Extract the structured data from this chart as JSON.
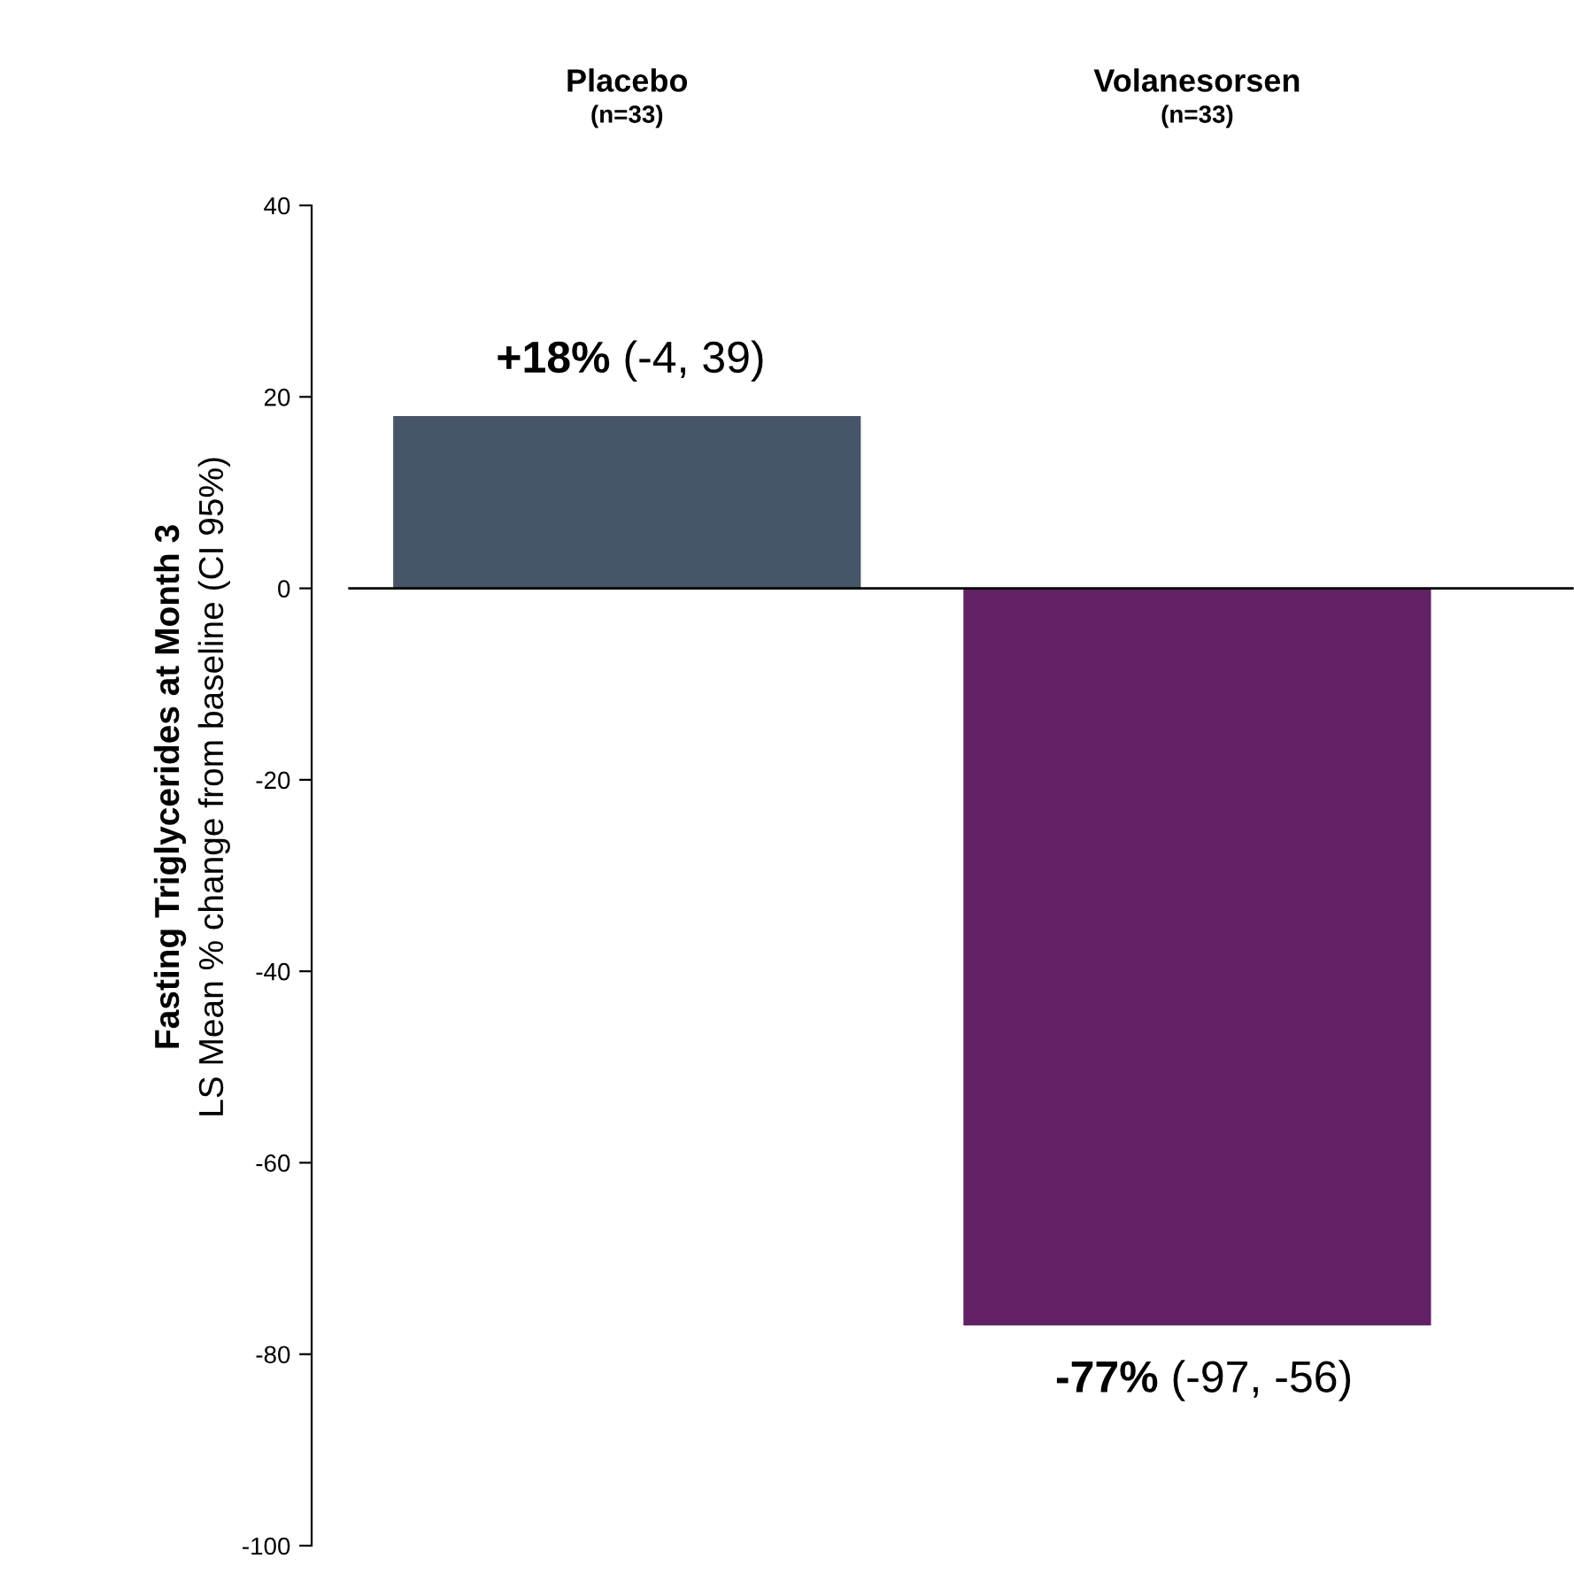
{
  "chart_data": {
    "type": "bar",
    "categories": [
      "Placebo\n(n=33)",
      "Volanesorsen\n(n=33)"
    ],
    "values": [
      18,
      -77
    ],
    "colors": [
      "#465567",
      "#622164"
    ],
    "value_labels": [
      "+18% (-4, 39)",
      "-77% (-97, -56)"
    ],
    "ylabel": "Fasting Triglycerides at Month 3\nLS Mean % change from baseline (CI 95%)",
    "ylim": [
      -100,
      40
    ],
    "yticks": [
      -100,
      -80,
      -60,
      -40,
      -20,
      0,
      20,
      40
    ],
    "ref_lines": [
      {
        "axis": "y",
        "value": 0,
        "color": "#000000"
      }
    ],
    "grid": false
  }
}
